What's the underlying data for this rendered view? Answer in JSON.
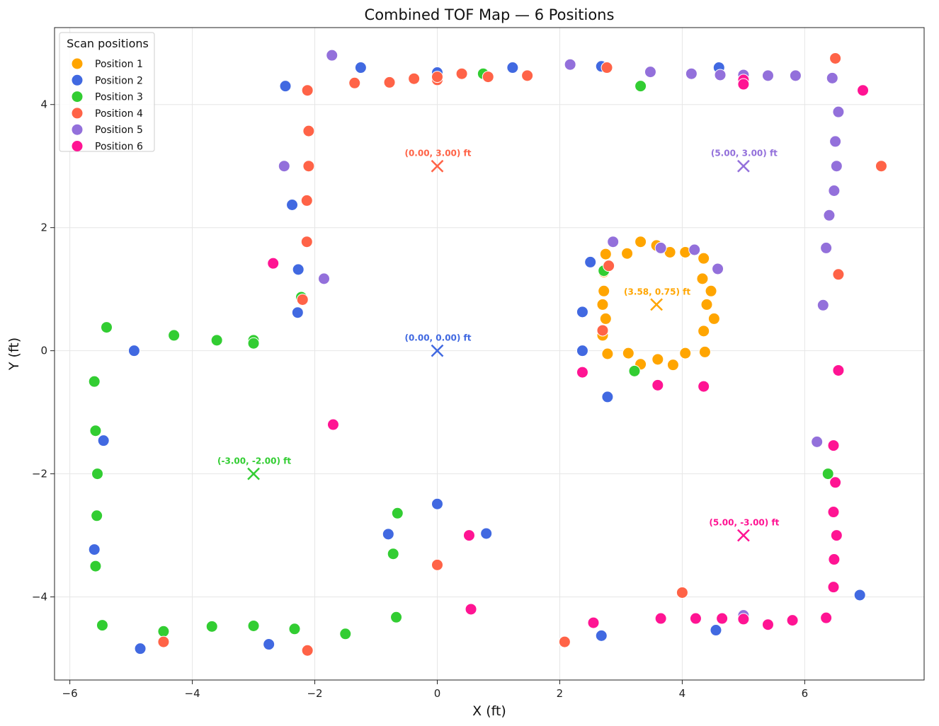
{
  "chart_data": {
    "type": "scatter",
    "title": "Combined TOF Map — 6 Positions",
    "xlabel": "X (ft)",
    "ylabel": "Y (ft)",
    "xlim": [
      -6.25,
      7.95
    ],
    "ylim": [
      -5.35,
      5.25
    ],
    "xticks": [
      -6,
      -4,
      -2,
      0,
      2,
      4,
      6
    ],
    "yticks": [
      -4,
      -2,
      0,
      2,
      4
    ],
    "xtick_labels": [
      "−6",
      "−4",
      "−2",
      "0",
      "2",
      "4",
      "6"
    ],
    "ytick_labels": [
      "−4",
      "−2",
      "0",
      "2",
      "4"
    ],
    "grid": true,
    "legend": {
      "title": "Scan positions",
      "placement": "top-left"
    },
    "series": [
      {
        "name": "Position 1",
        "color": "#ffa500",
        "origin": [
          3.58,
          0.75
        ],
        "origin_label": "(3.58, 0.75) ft",
        "points": [
          [
            2.75,
            1.57
          ],
          [
            3.1,
            1.58
          ],
          [
            3.32,
            1.77
          ],
          [
            3.58,
            1.71
          ],
          [
            3.8,
            1.6
          ],
          [
            4.05,
            1.6
          ],
          [
            4.35,
            1.5
          ],
          [
            2.72,
            1.28
          ],
          [
            4.33,
            1.17
          ],
          [
            2.72,
            0.97
          ],
          [
            4.47,
            0.97
          ],
          [
            2.7,
            0.75
          ],
          [
            4.4,
            0.75
          ],
          [
            2.75,
            0.52
          ],
          [
            4.52,
            0.52
          ],
          [
            2.7,
            0.25
          ],
          [
            4.35,
            0.32
          ],
          [
            2.78,
            -0.05
          ],
          [
            3.12,
            -0.04
          ],
          [
            4.37,
            -0.02
          ],
          [
            3.32,
            -0.22
          ],
          [
            3.6,
            -0.14
          ],
          [
            3.85,
            -0.23
          ],
          [
            4.05,
            -0.04
          ]
        ]
      },
      {
        "name": "Position 2",
        "color": "#4169e1",
        "origin": [
          0.0,
          0.0
        ],
        "origin_label": "(0.00, 0.00) ft",
        "points": [
          [
            -2.48,
            4.3
          ],
          [
            -1.25,
            4.6
          ],
          [
            0.0,
            4.52
          ],
          [
            1.23,
            4.6
          ],
          [
            2.68,
            4.62
          ],
          [
            4.6,
            4.6
          ],
          [
            -2.37,
            2.37
          ],
          [
            -2.27,
            1.32
          ],
          [
            2.5,
            1.44
          ],
          [
            -2.28,
            0.62
          ],
          [
            2.37,
            0.63
          ],
          [
            -4.95,
            0.0
          ],
          [
            2.37,
            0.0
          ],
          [
            2.78,
            -0.75
          ],
          [
            -5.45,
            -1.46
          ],
          [
            0.0,
            -2.49
          ],
          [
            -0.8,
            -2.98
          ],
          [
            0.8,
            -2.97
          ],
          [
            -5.6,
            -3.23
          ],
          [
            -4.85,
            -4.84
          ],
          [
            -2.75,
            -4.77
          ],
          [
            2.68,
            -4.63
          ],
          [
            4.55,
            -4.54
          ],
          [
            6.9,
            -3.97
          ]
        ]
      },
      {
        "name": "Position 3",
        "color": "#32cd32",
        "origin": [
          -3.0,
          -2.0
        ],
        "origin_label": "(-3.00, -2.00) ft",
        "points": [
          [
            0.75,
            4.5
          ],
          [
            3.32,
            4.3
          ],
          [
            -2.22,
            0.87
          ],
          [
            2.72,
            1.3
          ],
          [
            -5.4,
            0.38
          ],
          [
            -4.3,
            0.25
          ],
          [
            -3.6,
            0.17
          ],
          [
            -3.0,
            0.17
          ],
          [
            -3.0,
            0.12
          ],
          [
            -5.6,
            -0.5
          ],
          [
            3.22,
            -0.33
          ],
          [
            -5.58,
            -1.3
          ],
          [
            -5.55,
            -2.0
          ],
          [
            6.38,
            -2.0
          ],
          [
            -0.65,
            -2.64
          ],
          [
            -5.56,
            -2.68
          ],
          [
            -0.72,
            -3.3
          ],
          [
            -5.58,
            -3.5
          ],
          [
            -5.47,
            -4.46
          ],
          [
            -4.47,
            -4.56
          ],
          [
            -3.68,
            -4.48
          ],
          [
            -3.0,
            -4.47
          ],
          [
            -2.33,
            -4.52
          ],
          [
            -1.5,
            -4.6
          ],
          [
            -0.67,
            -4.33
          ]
        ]
      },
      {
        "name": "Position 4",
        "color": "#ff6347",
        "origin": [
          0.0,
          3.0
        ],
        "origin_label": "(0.00, 3.00) ft",
        "points": [
          [
            -2.12,
            4.23
          ],
          [
            -1.35,
            4.35
          ],
          [
            -0.78,
            4.36
          ],
          [
            -0.38,
            4.42
          ],
          [
            0.0,
            4.4
          ],
          [
            0.0,
            4.45
          ],
          [
            0.4,
            4.5
          ],
          [
            0.83,
            4.45
          ],
          [
            1.47,
            4.47
          ],
          [
            2.77,
            4.6
          ],
          [
            6.5,
            4.75
          ],
          [
            -2.1,
            3.57
          ],
          [
            -2.1,
            3.0
          ],
          [
            7.25,
            3.0
          ],
          [
            -2.13,
            2.44
          ],
          [
            -2.13,
            1.77
          ],
          [
            2.8,
            1.38
          ],
          [
            6.55,
            1.24
          ],
          [
            -2.2,
            0.83
          ],
          [
            2.7,
            0.33
          ],
          [
            0.0,
            -3.48
          ],
          [
            4.0,
            -3.93
          ],
          [
            -4.47,
            -4.73
          ],
          [
            -2.12,
            -4.87
          ],
          [
            2.08,
            -4.73
          ]
        ]
      },
      {
        "name": "Position 5",
        "color": "#9370db",
        "origin": [
          5.0,
          3.0
        ],
        "origin_label": "(5.00, 3.00) ft",
        "points": [
          [
            -1.72,
            4.8
          ],
          [
            2.17,
            4.65
          ],
          [
            3.48,
            4.53
          ],
          [
            4.15,
            4.5
          ],
          [
            4.62,
            4.48
          ],
          [
            5.0,
            4.48
          ],
          [
            5.4,
            4.47
          ],
          [
            5.85,
            4.47
          ],
          [
            6.45,
            4.43
          ],
          [
            6.55,
            3.88
          ],
          [
            6.5,
            3.4
          ],
          [
            -2.5,
            3.0
          ],
          [
            6.52,
            3.0
          ],
          [
            6.48,
            2.6
          ],
          [
            6.4,
            2.2
          ],
          [
            2.87,
            1.77
          ],
          [
            3.65,
            1.67
          ],
          [
            4.2,
            1.64
          ],
          [
            6.35,
            1.67
          ],
          [
            4.58,
            1.33
          ],
          [
            -1.85,
            1.17
          ],
          [
            6.3,
            0.74
          ],
          [
            6.2,
            -1.48
          ],
          [
            5.0,
            -4.3
          ]
        ]
      },
      {
        "name": "Position 6",
        "color": "#ff1493",
        "origin": [
          5.0,
          -3.0
        ],
        "origin_label": "(5.00, -3.00) ft",
        "points": [
          [
            5.0,
            4.4
          ],
          [
            5.0,
            4.33
          ],
          [
            6.95,
            4.23
          ],
          [
            -2.68,
            1.42
          ],
          [
            6.55,
            -0.32
          ],
          [
            2.37,
            -0.35
          ],
          [
            3.6,
            -0.56
          ],
          [
            4.35,
            -0.58
          ],
          [
            -1.7,
            -1.2
          ],
          [
            6.47,
            -1.54
          ],
          [
            6.5,
            -2.14
          ],
          [
            6.47,
            -2.62
          ],
          [
            0.52,
            -3.0
          ],
          [
            6.52,
            -3.0
          ],
          [
            6.48,
            -3.39
          ],
          [
            6.47,
            -3.84
          ],
          [
            0.55,
            -4.2
          ],
          [
            2.55,
            -4.42
          ],
          [
            3.65,
            -4.35
          ],
          [
            4.22,
            -4.35
          ],
          [
            4.65,
            -4.35
          ],
          [
            5.0,
            -4.36
          ],
          [
            5.4,
            -4.45
          ],
          [
            5.8,
            -4.38
          ],
          [
            6.35,
            -4.34
          ]
        ]
      }
    ]
  }
}
